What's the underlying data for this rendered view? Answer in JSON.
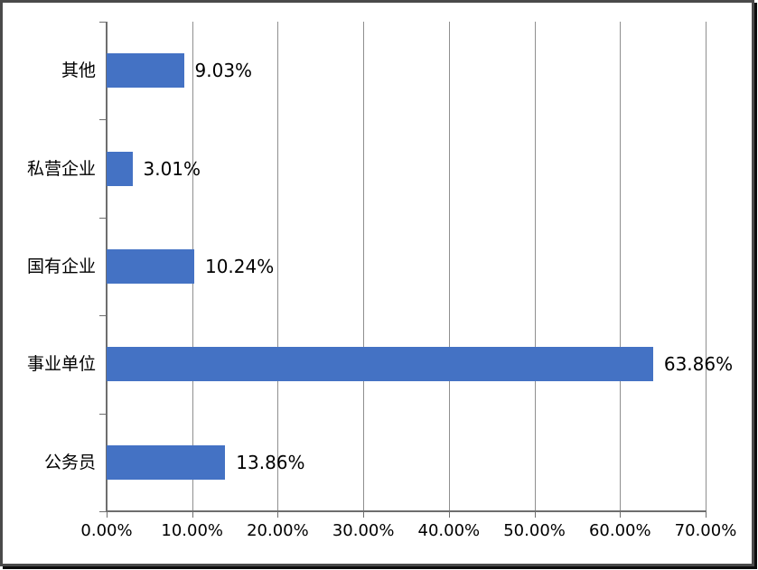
{
  "chart_data": {
    "type": "bar",
    "orientation": "horizontal",
    "title": "",
    "subtitle": "",
    "legend": "none",
    "grid": "vertical-only",
    "category_order": "top-to-bottom",
    "categories": [
      "其他",
      "私营企业",
      "国有企业",
      "事业单位",
      "公务员"
    ],
    "values": [
      9.03,
      3.01,
      10.24,
      63.86,
      13.86
    ],
    "data_labels": [
      "9.03%",
      "3.01%",
      "10.24%",
      "63.86%",
      "13.86%"
    ],
    "x_axis": {
      "min": 0,
      "max": 70,
      "tick_values": [
        0,
        10,
        20,
        30,
        40,
        50,
        60,
        70
      ],
      "tick_labels": [
        "0.00%",
        "10.00%",
        "20.00%",
        "30.00%",
        "40.00%",
        "50.00%",
        "60.00%",
        "70.00%"
      ]
    },
    "y_axis": {
      "label": "",
      "tick_marks": "category-boundaries"
    },
    "colors": {
      "bar_fill": "#4472C4",
      "gridline": "#8f8f8f",
      "axis_line": "#6e6e6e",
      "text": "#000000",
      "frame_border": "#4a4a4a",
      "background": "#ffffff"
    }
  }
}
